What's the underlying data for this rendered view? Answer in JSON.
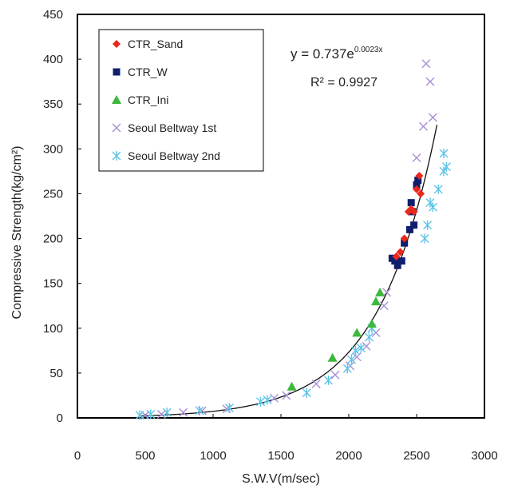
{
  "chart_data": {
    "type": "scatter",
    "xlabel": "S.W.V(m/sec)",
    "ylabel": "Compressive Strength(kg/cm²)",
    "xlim": [
      0,
      3000
    ],
    "ylim": [
      0,
      450
    ],
    "xticks": [
      0,
      500,
      1000,
      1500,
      2000,
      2500,
      3000
    ],
    "yticks": [
      0,
      50,
      100,
      150,
      200,
      250,
      300,
      350,
      400,
      450
    ],
    "grid": false,
    "legend_position": "top-left",
    "equation": {
      "prefix": "y = 0.737e",
      "exponent": "0.0023x"
    },
    "r_squared": "R² = 0.9927",
    "colors": {
      "ctr_sand": "#e8291c",
      "ctr_w": "#0f1f6e",
      "ctr_ini": "#3cb83c",
      "beltway_1st": "#a98ed6",
      "beltway_2nd": "#5ec4e8",
      "trend": "#111111"
    },
    "series": [
      {
        "name": "CTR_Sand",
        "marker": "diamond",
        "color_key": "ctr_sand",
        "points": [
          [
            2350,
            180
          ],
          [
            2380,
            185
          ],
          [
            2410,
            200
          ],
          [
            2440,
            230
          ],
          [
            2460,
            233
          ],
          [
            2480,
            230
          ],
          [
            2500,
            255
          ],
          [
            2520,
            270
          ],
          [
            2530,
            250
          ]
        ]
      },
      {
        "name": "CTR_W",
        "marker": "square",
        "color_key": "ctr_w",
        "points": [
          [
            2320,
            178
          ],
          [
            2340,
            175
          ],
          [
            2360,
            170
          ],
          [
            2390,
            175
          ],
          [
            2410,
            195
          ],
          [
            2450,
            210
          ],
          [
            2460,
            240
          ],
          [
            2470,
            230
          ],
          [
            2480,
            215
          ],
          [
            2500,
            260
          ],
          [
            2510,
            265
          ]
        ]
      },
      {
        "name": "CTR_Ini",
        "marker": "triangle",
        "color_key": "ctr_ini",
        "points": [
          [
            1580,
            35
          ],
          [
            1880,
            67
          ],
          [
            2060,
            95
          ],
          [
            2170,
            105
          ],
          [
            2200,
            130
          ],
          [
            2230,
            140
          ]
        ]
      },
      {
        "name": "Seoul Beltway 1st",
        "marker": "x",
        "color_key": "beltway_1st",
        "points": [
          [
            500,
            3
          ],
          [
            620,
            4
          ],
          [
            780,
            6
          ],
          [
            920,
            8
          ],
          [
            1100,
            10
          ],
          [
            1450,
            22
          ],
          [
            1540,
            25
          ],
          [
            1760,
            38
          ],
          [
            1900,
            48
          ],
          [
            2010,
            58
          ],
          [
            2060,
            68
          ],
          [
            2130,
            80
          ],
          [
            2200,
            95
          ],
          [
            2260,
            125
          ],
          [
            2280,
            140
          ],
          [
            2500,
            290
          ],
          [
            2550,
            325
          ],
          [
            2570,
            395
          ],
          [
            2600,
            375
          ],
          [
            2620,
            335
          ]
        ]
      },
      {
        "name": "Seoul Beltway 2nd",
        "marker": "asterisk",
        "color_key": "beltway_2nd",
        "points": [
          [
            460,
            3
          ],
          [
            540,
            4
          ],
          [
            660,
            6
          ],
          [
            900,
            8
          ],
          [
            1120,
            11
          ],
          [
            1350,
            18
          ],
          [
            1400,
            20
          ],
          [
            1690,
            28
          ],
          [
            1850,
            42
          ],
          [
            1990,
            55
          ],
          [
            2020,
            65
          ],
          [
            2050,
            75
          ],
          [
            2090,
            78
          ],
          [
            2150,
            90
          ],
          [
            2170,
            100
          ],
          [
            2560,
            200
          ],
          [
            2580,
            215
          ],
          [
            2600,
            240
          ],
          [
            2620,
            235
          ],
          [
            2660,
            255
          ],
          [
            2700,
            295
          ],
          [
            2700,
            275
          ],
          [
            2720,
            280
          ]
        ]
      }
    ]
  }
}
